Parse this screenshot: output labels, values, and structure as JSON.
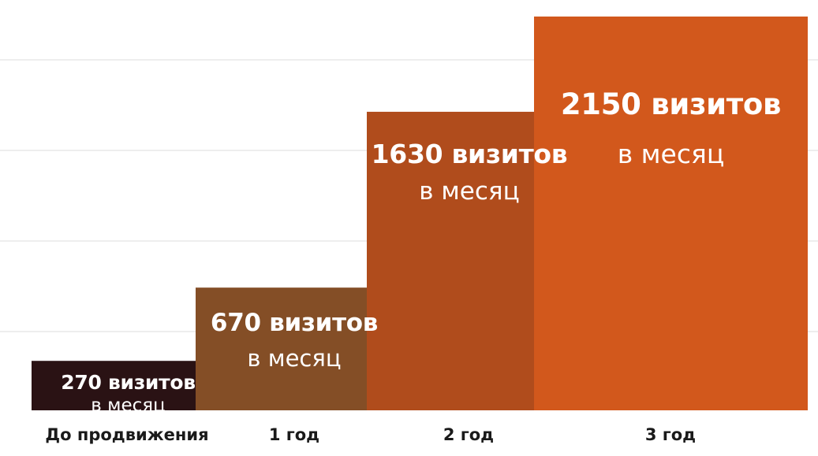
{
  "chart_data": {
    "type": "bar",
    "categories": [
      "До продвижения",
      "1 год",
      "2 год",
      "3 год"
    ],
    "values": [
      270,
      670,
      1630,
      2150
    ],
    "value_labels": [
      "270 визитов",
      "670 визитов",
      "1630 визитов",
      "2150 визитов"
    ],
    "unit_label": "в месяц",
    "colors": [
      "#2a1214",
      "#844e26",
      "#b04c1c",
      "#d2581c"
    ],
    "grid": true,
    "ylim": [
      0,
      2150
    ]
  }
}
